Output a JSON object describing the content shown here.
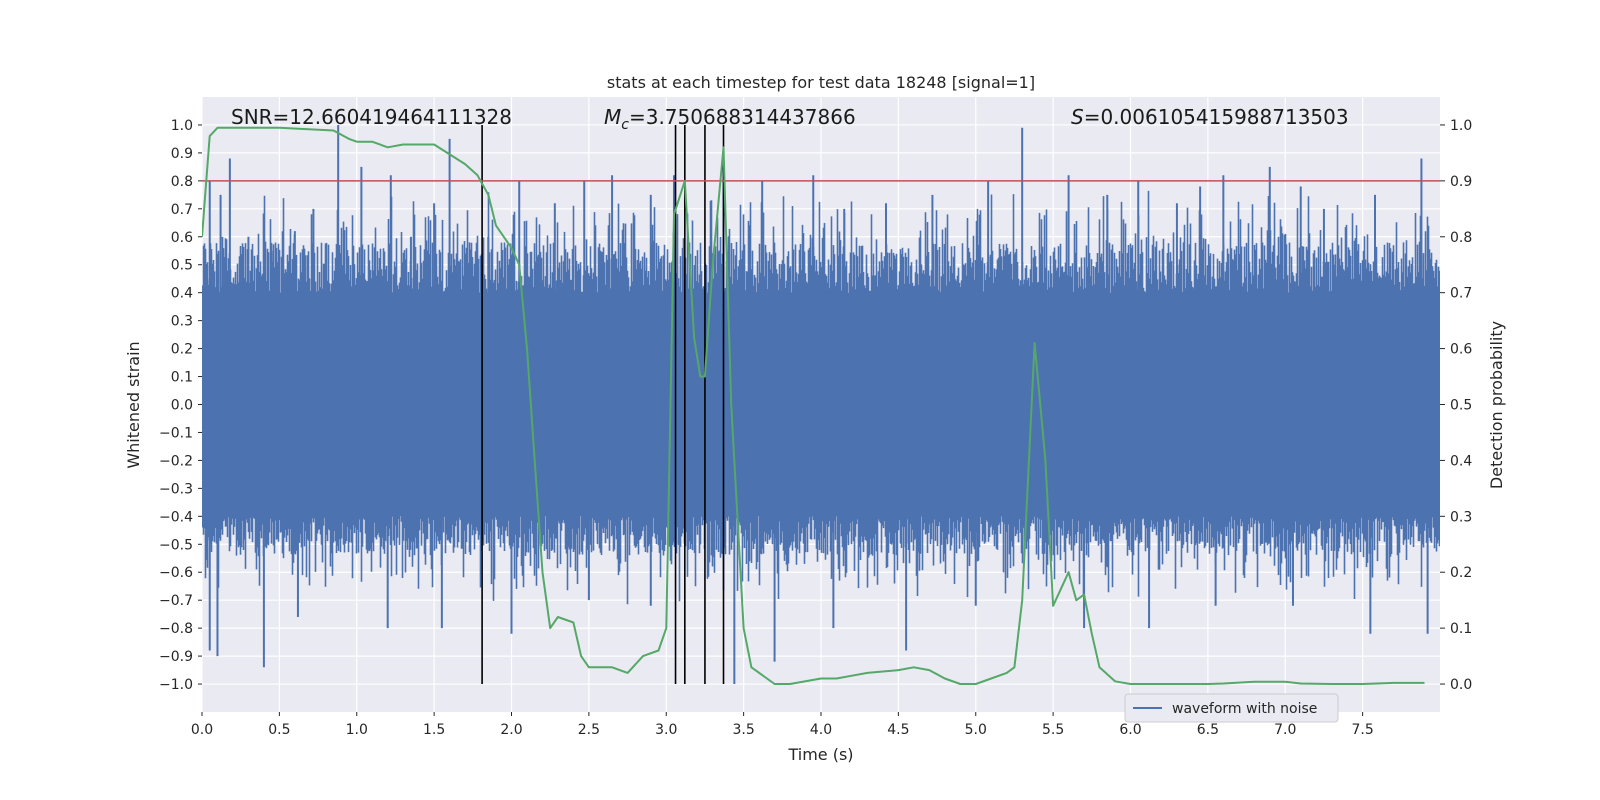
{
  "chart_data": {
    "type": "line",
    "title": "stats at each timestep for test data 18248 [signal=1]",
    "xlabel": "Time (s)",
    "ylabel": "Whitened strain",
    "y2label": "Detection probability",
    "xlim": [
      0.0,
      8.0
    ],
    "ylim": [
      -1.1,
      1.1
    ],
    "y2lim": [
      -0.05,
      1.05
    ],
    "xticks": [
      "0.0",
      "0.5",
      "1.0",
      "1.5",
      "2.0",
      "2.5",
      "3.0",
      "3.5",
      "4.0",
      "4.5",
      "5.0",
      "5.5",
      "6.0",
      "6.5",
      "7.0",
      "7.5"
    ],
    "yticks": [
      "1.0",
      "0.9",
      "0.8",
      "0.7",
      "0.6",
      "0.5",
      "0.4",
      "0.3",
      "0.2",
      "0.1",
      "0.0",
      "−0.1",
      "−0.2",
      "−0.3",
      "−0.4",
      "−0.5",
      "−0.6",
      "−0.7",
      "−0.8",
      "−0.9",
      "−1.0"
    ],
    "y2ticks": [
      "1.0",
      "0.9",
      "0.8",
      "0.7",
      "0.6",
      "0.5",
      "0.4",
      "0.3",
      "0.2",
      "0.1",
      "0.0"
    ],
    "annotations": {
      "snr": "SNR=12.660419464111328",
      "mc_symbol": "M",
      "mc_sub": "c",
      "mc_value": "=3.750688314437866",
      "s_symbol": "S",
      "s_value": "=0.006105415988713503"
    },
    "legend": {
      "label": "waveform with noise",
      "location": "lower-right"
    },
    "threshold": {
      "value": 0.9,
      "axis": "right",
      "color": "#c44e52"
    },
    "vertical_lines": [
      1.81,
      3.06,
      3.12,
      3.25,
      3.37
    ],
    "waveform": {
      "name": "waveform with noise",
      "color": "#4c72b0",
      "envelope_core": 0.4,
      "peaks": [
        {
          "t": 0.02,
          "v": 0.55
        },
        {
          "t": 0.05,
          "v": 0.8
        },
        {
          "t": 0.12,
          "v": 0.75
        },
        {
          "t": 0.18,
          "v": 0.88
        },
        {
          "t": 0.3,
          "v": 0.6
        },
        {
          "t": 0.45,
          "v": 0.55
        },
        {
          "t": 0.6,
          "v": 0.62
        },
        {
          "t": 0.72,
          "v": 0.7
        },
        {
          "t": 0.88,
          "v": 1.0
        },
        {
          "t": 1.03,
          "v": 0.85
        },
        {
          "t": 1.22,
          "v": 0.82
        },
        {
          "t": 1.35,
          "v": 0.6
        },
        {
          "t": 1.5,
          "v": 0.72
        },
        {
          "t": 1.6,
          "v": 0.95
        },
        {
          "t": 1.85,
          "v": 0.6
        },
        {
          "t": 2.05,
          "v": 0.8
        },
        {
          "t": 2.28,
          "v": 0.72
        },
        {
          "t": 2.47,
          "v": 0.8
        },
        {
          "t": 2.65,
          "v": 0.82
        },
        {
          "t": 2.9,
          "v": 0.75
        },
        {
          "t": 3.05,
          "v": 0.82
        },
        {
          "t": 3.37,
          "v": 0.88
        },
        {
          "t": 3.62,
          "v": 0.8
        },
        {
          "t": 3.95,
          "v": 0.82
        },
        {
          "t": 4.15,
          "v": 0.7
        },
        {
          "t": 4.42,
          "v": 0.72
        },
        {
          "t": 4.72,
          "v": 0.75
        },
        {
          "t": 5.08,
          "v": 0.8
        },
        {
          "t": 5.3,
          "v": 0.99
        },
        {
          "t": 5.6,
          "v": 0.82
        },
        {
          "t": 5.85,
          "v": 0.75
        },
        {
          "t": 6.05,
          "v": 0.8
        },
        {
          "t": 6.3,
          "v": 0.72
        },
        {
          "t": 6.45,
          "v": 0.78
        },
        {
          "t": 6.6,
          "v": 0.82
        },
        {
          "t": 6.9,
          "v": 0.85
        },
        {
          "t": 7.1,
          "v": 0.78
        },
        {
          "t": 7.25,
          "v": 0.7
        },
        {
          "t": 7.58,
          "v": 0.75
        },
        {
          "t": 7.88,
          "v": 0.88
        }
      ],
      "troughs": [
        {
          "t": 0.05,
          "v": -0.88
        },
        {
          "t": 0.1,
          "v": -0.9
        },
        {
          "t": 0.4,
          "v": -0.94
        },
        {
          "t": 0.62,
          "v": -0.76
        },
        {
          "t": 1.2,
          "v": -0.8
        },
        {
          "t": 1.55,
          "v": -0.8
        },
        {
          "t": 2.0,
          "v": -0.82
        },
        {
          "t": 2.5,
          "v": -0.7
        },
        {
          "t": 2.9,
          "v": -0.72
        },
        {
          "t": 3.44,
          "v": -1.0
        },
        {
          "t": 3.7,
          "v": -0.92
        },
        {
          "t": 4.08,
          "v": -0.8
        },
        {
          "t": 4.55,
          "v": -0.88
        },
        {
          "t": 5.0,
          "v": -0.72
        },
        {
          "t": 5.7,
          "v": -0.8
        },
        {
          "t": 6.12,
          "v": -0.8
        },
        {
          "t": 6.55,
          "v": -0.72
        },
        {
          "t": 7.05,
          "v": -0.72
        },
        {
          "t": 7.55,
          "v": -0.82
        },
        {
          "t": 7.92,
          "v": -0.82
        }
      ]
    },
    "detection_probability": {
      "color": "#55a868",
      "x": [
        0.0,
        0.05,
        0.1,
        0.5,
        0.85,
        0.95,
        1.0,
        1.1,
        1.2,
        1.3,
        1.5,
        1.7,
        1.78,
        1.85,
        1.9,
        2.0,
        2.05,
        2.1,
        2.15,
        2.2,
        2.25,
        2.3,
        2.4,
        2.45,
        2.5,
        2.65,
        2.75,
        2.85,
        2.95,
        3.0,
        3.05,
        3.12,
        3.18,
        3.22,
        3.25,
        3.3,
        3.37,
        3.42,
        3.5,
        3.55,
        3.7,
        3.8,
        4.0,
        4.1,
        4.2,
        4.3,
        4.5,
        4.6,
        4.7,
        4.8,
        4.9,
        5.0,
        5.1,
        5.2,
        5.25,
        5.3,
        5.38,
        5.45,
        5.5,
        5.6,
        5.65,
        5.7,
        5.75,
        5.8,
        5.9,
        6.0,
        6.5,
        6.6,
        6.8,
        7.0,
        7.1,
        7.3,
        7.5,
        7.7,
        7.9
      ],
      "y": [
        0.8,
        0.98,
        0.995,
        0.995,
        0.99,
        0.975,
        0.97,
        0.97,
        0.96,
        0.965,
        0.965,
        0.93,
        0.91,
        0.875,
        0.82,
        0.78,
        0.75,
        0.6,
        0.4,
        0.2,
        0.1,
        0.12,
        0.11,
        0.05,
        0.03,
        0.03,
        0.02,
        0.05,
        0.06,
        0.1,
        0.84,
        0.9,
        0.62,
        0.55,
        0.55,
        0.75,
        0.96,
        0.5,
        0.1,
        0.03,
        0.0,
        0.0,
        0.01,
        0.01,
        0.015,
        0.02,
        0.025,
        0.03,
        0.025,
        0.01,
        0.0,
        0.0,
        0.01,
        0.02,
        0.03,
        0.15,
        0.61,
        0.4,
        0.14,
        0.2,
        0.15,
        0.16,
        0.09,
        0.03,
        0.005,
        0.0,
        0.0,
        0.001,
        0.004,
        0.004,
        0.001,
        0.0,
        0.0,
        0.002,
        0.002
      ]
    }
  }
}
